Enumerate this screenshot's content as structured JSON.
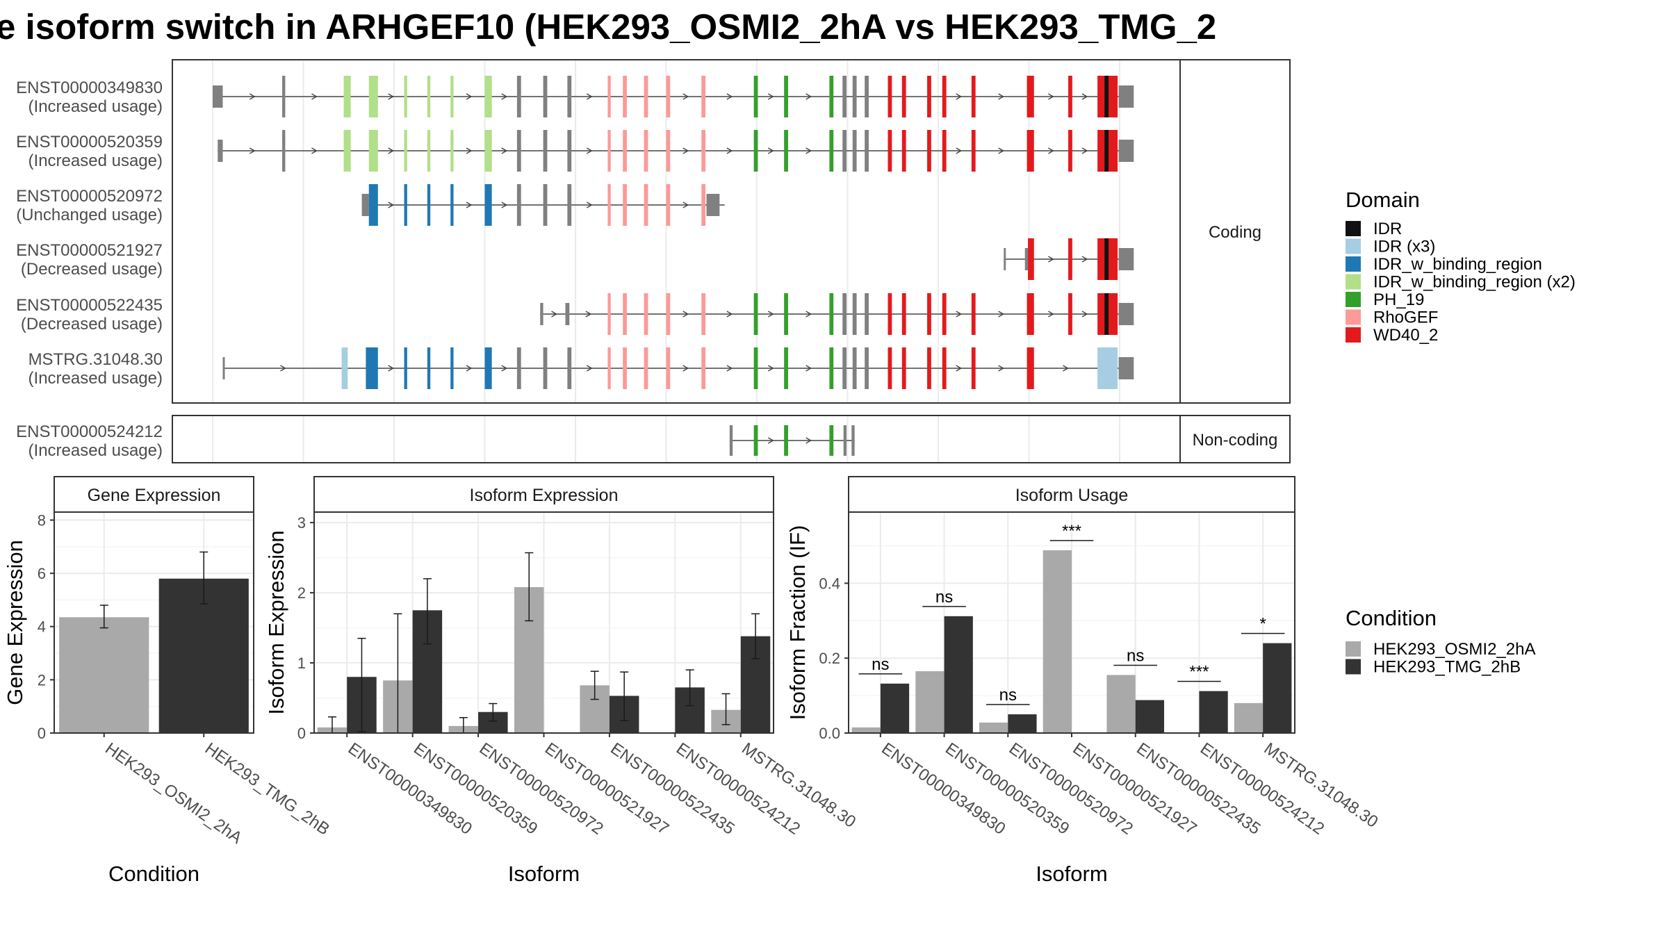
{
  "title": "e isoform switch in ARHGEF10 (HEK293_OSMI2_2hA vs HEK293_TMG_2",
  "facets": {
    "coding": "Coding",
    "noncoding": "Non-coding"
  },
  "domain_legend": {
    "title": "Domain",
    "items": [
      {
        "label": "IDR",
        "color": "#111111"
      },
      {
        "label": "IDR (x3)",
        "color": "#a6cee3"
      },
      {
        "label": "IDR_w_binding_region",
        "color": "#1f78b4"
      },
      {
        "label": "IDR_w_binding_region (x2)",
        "color": "#b2df8a"
      },
      {
        "label": "PH_19",
        "color": "#33a02c"
      },
      {
        "label": "RhoGEF",
        "color": "#fb9a99"
      },
      {
        "label": "WD40_2",
        "color": "#e31a1c"
      }
    ]
  },
  "condition_legend": {
    "title": "Condition",
    "items": [
      {
        "label": "HEK293_OSMI2_2hA",
        "color": "#a9a9a9"
      },
      {
        "label": "HEK293_TMG_2hB",
        "color": "#333333"
      }
    ]
  },
  "structure": {
    "xlim": [
      0,
      100
    ],
    "transcripts": [
      {
        "id": "ENST00000349830",
        "usage": "(Increased usage)",
        "facet": "coding",
        "start": 4.0,
        "end": 94.0,
        "exons": [
          [
            4.0,
            5.0,
            "utr",
            ""
          ],
          [
            10.9,
            11.2,
            "cds",
            ""
          ],
          [
            17.0,
            17.7,
            "cds",
            "idrx2"
          ],
          [
            19.5,
            20.4,
            "cds",
            "idrx2"
          ],
          [
            23.0,
            23.3,
            "cds",
            "idrx2"
          ],
          [
            25.3,
            25.6,
            "cds",
            "idrx2"
          ],
          [
            27.6,
            27.9,
            "cds",
            "idrx2"
          ],
          [
            31.0,
            31.7,
            "cds",
            "idrx2"
          ],
          [
            34.2,
            34.6,
            "cds",
            ""
          ],
          [
            36.8,
            37.2,
            "cds",
            ""
          ],
          [
            39.2,
            39.6,
            "cds",
            ""
          ],
          [
            43.2,
            43.5,
            "cds",
            "rhogef"
          ],
          [
            44.7,
            45.1,
            "cds",
            "rhogef"
          ],
          [
            46.8,
            47.2,
            "cds",
            "rhogef"
          ],
          [
            49.0,
            49.4,
            "cds",
            "rhogef"
          ],
          [
            52.5,
            52.9,
            "cds",
            "rhogef"
          ],
          [
            57.7,
            58.1,
            "cds",
            "ph"
          ],
          [
            60.7,
            61.1,
            "cds",
            "ph"
          ],
          [
            65.2,
            65.6,
            "cds",
            "ph"
          ],
          [
            66.5,
            66.9,
            "cds",
            ""
          ],
          [
            67.5,
            67.9,
            "cds",
            ""
          ],
          [
            68.7,
            69.1,
            "cds",
            ""
          ],
          [
            71.0,
            71.4,
            "cds",
            "wd40"
          ],
          [
            72.4,
            72.8,
            "cds",
            "wd40"
          ],
          [
            74.9,
            75.3,
            "cds",
            "wd40"
          ],
          [
            76.4,
            76.8,
            "cds",
            "wd40"
          ],
          [
            79.3,
            79.7,
            "cds",
            "wd40"
          ],
          [
            84.8,
            85.5,
            "cds",
            "wd40"
          ],
          [
            88.9,
            89.3,
            "cds",
            "wd40"
          ],
          [
            91.8,
            93.8,
            "cds",
            "wd40"
          ],
          [
            92.5,
            92.9,
            "cds",
            "idr"
          ],
          [
            93.9,
            95.4,
            "utr",
            ""
          ]
        ]
      },
      {
        "id": "ENST00000520359",
        "usage": "(Increased usage)",
        "facet": "coding",
        "start": 4.5,
        "end": 94.0,
        "exons": [
          [
            4.5,
            5.0,
            "utr",
            ""
          ],
          [
            10.9,
            11.2,
            "cds",
            ""
          ],
          [
            17.0,
            17.7,
            "cds",
            "idrx2"
          ],
          [
            19.5,
            20.4,
            "cds",
            "idrx2"
          ],
          [
            23.0,
            23.3,
            "cds",
            "idrx2"
          ],
          [
            25.3,
            25.6,
            "cds",
            "idrx2"
          ],
          [
            27.6,
            27.9,
            "cds",
            "idrx2"
          ],
          [
            31.0,
            31.7,
            "cds",
            "idrx2"
          ],
          [
            34.2,
            34.6,
            "cds",
            ""
          ],
          [
            36.8,
            37.2,
            "cds",
            ""
          ],
          [
            39.2,
            39.6,
            "cds",
            ""
          ],
          [
            43.2,
            43.5,
            "cds",
            "rhogef"
          ],
          [
            44.7,
            45.1,
            "cds",
            "rhogef"
          ],
          [
            46.8,
            47.2,
            "cds",
            "rhogef"
          ],
          [
            49.0,
            49.4,
            "cds",
            "rhogef"
          ],
          [
            52.5,
            52.9,
            "cds",
            "rhogef"
          ],
          [
            57.7,
            58.1,
            "cds",
            "ph"
          ],
          [
            60.7,
            61.1,
            "cds",
            "ph"
          ],
          [
            65.2,
            65.6,
            "cds",
            "ph"
          ],
          [
            66.5,
            66.9,
            "cds",
            ""
          ],
          [
            67.5,
            67.9,
            "cds",
            ""
          ],
          [
            68.7,
            69.1,
            "cds",
            ""
          ],
          [
            71.0,
            71.4,
            "cds",
            "wd40"
          ],
          [
            72.4,
            72.8,
            "cds",
            "wd40"
          ],
          [
            74.9,
            75.3,
            "cds",
            "wd40"
          ],
          [
            76.4,
            76.8,
            "cds",
            "wd40"
          ],
          [
            79.3,
            79.7,
            "cds",
            "wd40"
          ],
          [
            84.8,
            85.5,
            "cds",
            "wd40"
          ],
          [
            88.9,
            89.3,
            "cds",
            "wd40"
          ],
          [
            91.8,
            93.8,
            "cds",
            "wd40"
          ],
          [
            92.5,
            92.9,
            "cds",
            "idr"
          ],
          [
            93.9,
            95.4,
            "utr",
            ""
          ]
        ]
      },
      {
        "id": "ENST00000520972",
        "usage": "(Unchanged usage)",
        "facet": "coding",
        "start": 18.8,
        "end": 54.8,
        "exons": [
          [
            18.8,
            19.5,
            "utr",
            ""
          ],
          [
            19.5,
            20.4,
            "cds",
            "idrwb"
          ],
          [
            23.0,
            23.3,
            "cds",
            "idrwb"
          ],
          [
            25.3,
            25.6,
            "cds",
            "idrwb"
          ],
          [
            27.6,
            27.9,
            "cds",
            "idrwb"
          ],
          [
            31.0,
            31.7,
            "cds",
            "idrwb"
          ],
          [
            34.2,
            34.6,
            "cds",
            ""
          ],
          [
            36.8,
            37.2,
            "cds",
            ""
          ],
          [
            39.2,
            39.6,
            "cds",
            ""
          ],
          [
            43.2,
            43.5,
            "cds",
            "rhogef"
          ],
          [
            44.7,
            45.1,
            "cds",
            "rhogef"
          ],
          [
            46.8,
            47.2,
            "cds",
            "rhogef"
          ],
          [
            49.0,
            49.4,
            "cds",
            "rhogef"
          ],
          [
            52.5,
            52.9,
            "cds",
            "rhogef"
          ],
          [
            53.0,
            54.3,
            "utr",
            ""
          ]
        ]
      },
      {
        "id": "ENST00000521927",
        "usage": "(Decreased usage)",
        "facet": "coding",
        "start": 82.5,
        "end": 94.0,
        "exons": [
          [
            82.5,
            82.7,
            "utr",
            ""
          ],
          [
            84.6,
            84.9,
            "utr",
            ""
          ],
          [
            84.9,
            85.5,
            "cds",
            "wd40"
          ],
          [
            88.9,
            89.3,
            "cds",
            "wd40"
          ],
          [
            91.8,
            93.8,
            "cds",
            "wd40"
          ],
          [
            92.5,
            92.9,
            "cds",
            "idr"
          ],
          [
            93.9,
            95.4,
            "utr",
            ""
          ]
        ]
      },
      {
        "id": "ENST00000522435",
        "usage": "(Decreased usage)",
        "facet": "coding",
        "start": 36.5,
        "end": 94.0,
        "exons": [
          [
            36.5,
            36.8,
            "utr",
            ""
          ],
          [
            39.0,
            39.4,
            "utr",
            ""
          ],
          [
            43.2,
            43.5,
            "cds",
            "rhogef"
          ],
          [
            44.7,
            45.1,
            "cds",
            "rhogef"
          ],
          [
            46.8,
            47.2,
            "cds",
            "rhogef"
          ],
          [
            49.0,
            49.4,
            "cds",
            "rhogef"
          ],
          [
            52.5,
            52.9,
            "cds",
            "rhogef"
          ],
          [
            57.7,
            58.1,
            "cds",
            "ph"
          ],
          [
            60.7,
            61.1,
            "cds",
            "ph"
          ],
          [
            65.2,
            65.6,
            "cds",
            "ph"
          ],
          [
            66.5,
            66.9,
            "cds",
            ""
          ],
          [
            67.5,
            67.9,
            "cds",
            ""
          ],
          [
            68.7,
            69.1,
            "cds",
            ""
          ],
          [
            71.0,
            71.4,
            "cds",
            "wd40"
          ],
          [
            72.4,
            72.8,
            "cds",
            "wd40"
          ],
          [
            74.9,
            75.3,
            "cds",
            "wd40"
          ],
          [
            76.4,
            76.8,
            "cds",
            "wd40"
          ],
          [
            79.3,
            79.7,
            "cds",
            "wd40"
          ],
          [
            84.8,
            85.5,
            "cds",
            "wd40"
          ],
          [
            88.9,
            89.3,
            "cds",
            "wd40"
          ],
          [
            91.8,
            93.8,
            "cds",
            "wd40"
          ],
          [
            92.5,
            92.9,
            "cds",
            "idr"
          ],
          [
            93.9,
            95.4,
            "utr",
            ""
          ]
        ]
      },
      {
        "id": "MSTRG.31048.30",
        "usage": "(Increased usage)",
        "facet": "coding",
        "start": 5.0,
        "end": 94.0,
        "exons": [
          [
            5.0,
            5.2,
            "utr",
            ""
          ],
          [
            16.8,
            17.4,
            "cds",
            "idrx3"
          ],
          [
            19.2,
            20.4,
            "cds",
            "idrwb"
          ],
          [
            23.0,
            23.3,
            "cds",
            "idrwb"
          ],
          [
            25.3,
            25.6,
            "cds",
            "idrwb"
          ],
          [
            27.6,
            27.9,
            "cds",
            "idrwb"
          ],
          [
            31.0,
            31.7,
            "cds",
            "idrwb"
          ],
          [
            34.2,
            34.6,
            "cds",
            ""
          ],
          [
            36.8,
            37.2,
            "cds",
            ""
          ],
          [
            39.2,
            39.6,
            "cds",
            ""
          ],
          [
            43.2,
            43.5,
            "cds",
            "rhogef"
          ],
          [
            44.7,
            45.1,
            "cds",
            "rhogef"
          ],
          [
            46.8,
            47.2,
            "cds",
            "rhogef"
          ],
          [
            49.0,
            49.4,
            "cds",
            "rhogef"
          ],
          [
            52.5,
            52.9,
            "cds",
            "rhogef"
          ],
          [
            57.7,
            58.1,
            "cds",
            "ph"
          ],
          [
            60.7,
            61.1,
            "cds",
            "ph"
          ],
          [
            65.2,
            65.6,
            "cds",
            "ph"
          ],
          [
            66.5,
            66.9,
            "cds",
            ""
          ],
          [
            67.5,
            67.9,
            "cds",
            ""
          ],
          [
            68.7,
            69.1,
            "cds",
            ""
          ],
          [
            71.0,
            71.4,
            "cds",
            "wd40"
          ],
          [
            72.4,
            72.8,
            "cds",
            "wd40"
          ],
          [
            74.9,
            75.3,
            "cds",
            "wd40"
          ],
          [
            76.4,
            76.8,
            "cds",
            "wd40"
          ],
          [
            79.3,
            79.7,
            "cds",
            "wd40"
          ],
          [
            84.8,
            85.5,
            "cds",
            "wd40"
          ],
          [
            91.8,
            93.8,
            "cds",
            "idrx3"
          ],
          [
            93.9,
            95.4,
            "utr",
            ""
          ]
        ]
      },
      {
        "id": "ENST00000524212",
        "usage": "(Increased usage)",
        "facet": "noncoding",
        "start": 55.3,
        "end": 67.7,
        "exons": [
          [
            55.3,
            55.6,
            "nc",
            ""
          ],
          [
            57.7,
            58.1,
            "nc",
            "ph"
          ],
          [
            60.7,
            61.1,
            "nc",
            "ph"
          ],
          [
            65.2,
            65.6,
            "nc",
            "ph"
          ],
          [
            66.6,
            66.9,
            "nc",
            ""
          ],
          [
            67.4,
            67.7,
            "nc",
            ""
          ]
        ]
      }
    ]
  },
  "chart_data": [
    {
      "type": "bar",
      "panel": "Gene Expression",
      "categories": [
        "HEK293_OSMI2_2hA",
        "HEK293_TMG_2hB"
      ],
      "values": [
        4.35,
        5.8
      ],
      "error_low": [
        3.95,
        4.85
      ],
      "error_high": [
        4.8,
        6.8
      ],
      "xlabel": "Condition",
      "ylabel": "Gene Expression",
      "ylim": [
        0,
        8.3
      ],
      "yticks": [
        0,
        2,
        4,
        6,
        8
      ],
      "grid": true
    },
    {
      "type": "bar",
      "panel": "Isoform Expression",
      "categories": [
        "ENST00000349830",
        "ENST00000520359",
        "ENST00000520972",
        "ENST00000521927",
        "ENST00000522435",
        "ENST00000524212",
        "MSTRG.31048.30"
      ],
      "series": [
        {
          "name": "HEK293_OSMI2_2hA",
          "values": [
            0.08,
            0.75,
            0.1,
            2.08,
            0.68,
            0.0,
            0.33
          ],
          "error_low": [
            0.0,
            0.0,
            0.0,
            1.6,
            0.48,
            0.0,
            0.12
          ],
          "error_high": [
            0.23,
            1.7,
            0.22,
            2.57,
            0.88,
            0.0,
            0.56
          ]
        },
        {
          "name": "HEK293_TMG_2hB",
          "values": [
            0.8,
            1.75,
            0.3,
            0.0,
            0.53,
            0.65,
            1.38
          ],
          "error_low": [
            0.02,
            1.27,
            0.17,
            0.0,
            0.18,
            0.39,
            1.06
          ],
          "error_high": [
            1.35,
            2.2,
            0.42,
            0.0,
            0.87,
            0.9,
            1.7
          ]
        }
      ],
      "xlabel": "Isoform",
      "ylabel": "Isoform Expression",
      "ylim": [
        0,
        3.15
      ],
      "yticks": [
        0,
        1,
        2,
        3
      ],
      "grid": true
    },
    {
      "type": "bar",
      "panel": "Isoform Usage",
      "categories": [
        "ENST00000349830",
        "ENST00000520359",
        "ENST00000520972",
        "ENST00000521927",
        "ENST00000522435",
        "ENST00000524212",
        "MSTRG.31048.30"
      ],
      "series": [
        {
          "name": "HEK293_OSMI2_2hA",
          "values": [
            0.015,
            0.165,
            0.028,
            0.488,
            0.155,
            0.0,
            0.08
          ]
        },
        {
          "name": "HEK293_TMG_2hB",
          "values": [
            0.132,
            0.312,
            0.05,
            0.0,
            0.088,
            0.112,
            0.24
          ]
        }
      ],
      "significance": [
        "ns",
        "ns",
        "ns",
        "***",
        "ns",
        "***",
        "*"
      ],
      "xlabel": "Isoform",
      "ylabel": "Isoform Fraction (IF)",
      "ylim": [
        0,
        0.59
      ],
      "yticks": [
        0.0,
        0.2,
        0.4
      ],
      "grid": true
    }
  ]
}
